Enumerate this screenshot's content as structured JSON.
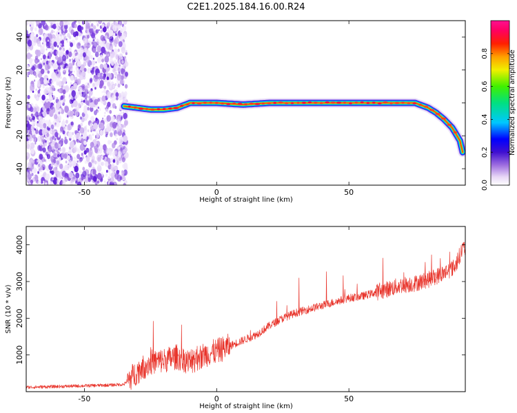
{
  "title": "C2E1.2025.184.16.00.R24",
  "chart_data": [
    {
      "type": "heatmap",
      "xlabel": "Height of straight line (km)",
      "ylabel": "Frequency (Hz)",
      "xlim": [
        -72,
        94
      ],
      "ylim": [
        -50,
        50
      ],
      "xticks": [
        -50,
        0,
        50
      ],
      "yticks": [
        -40,
        -20,
        0,
        20,
        40
      ],
      "colorbar": {
        "label": "Normalized spectral amplitude",
        "range": [
          0,
          1
        ],
        "ticks": [
          0.0,
          0.2,
          0.4,
          0.6,
          0.8
        ],
        "tick_labels": [
          "0.0",
          "0.2",
          "0.4",
          "0.6",
          "0.8"
        ],
        "colormap": "rainbow (white-purple-blue-cyan-green-yellow-red-magenta)"
      },
      "noise_region": {
        "x": [
          -72,
          -34
        ],
        "amplitude": "0.0-0.2 scattered"
      },
      "ridge": {
        "x": [
          -35,
          -30,
          -25,
          -20,
          -15,
          -10,
          -5,
          0,
          10,
          20,
          30,
          40,
          50,
          60,
          70,
          75,
          80,
          83,
          86,
          89,
          92,
          93
        ],
        "freq": [
          -2,
          -3,
          -4,
          -4,
          -3,
          0,
          0,
          0,
          -1,
          0,
          0,
          0,
          0,
          0,
          0,
          0,
          -3,
          -6,
          -10,
          -15,
          -23,
          -30
        ]
      },
      "grid": false,
      "legend": "none"
    },
    {
      "type": "line",
      "xlabel": "Height of straight line (km)",
      "ylabel": "SNR (10 * v/v)",
      "xlim": [
        -72,
        94
      ],
      "ylim": [
        0,
        4500
      ],
      "xticks": [
        -50,
        0,
        50
      ],
      "yticks": [
        1000,
        2000,
        3000,
        4000
      ],
      "color": "#e8332a",
      "grid": false,
      "legend": "none",
      "series": [
        {
          "x": [
            -72,
            -60,
            -50,
            -40,
            -35,
            -30,
            -25,
            -20,
            -15,
            -10,
            -5,
            0,
            5,
            10,
            15,
            20,
            25,
            30,
            35,
            40,
            45,
            50,
            55,
            60,
            65,
            70,
            75,
            80,
            85,
            90,
            93
          ],
          "values": [
            120,
            140,
            160,
            180,
            200,
            550,
            800,
            850,
            950,
            800,
            1000,
            1100,
            1250,
            1400,
            1550,
            1800,
            2000,
            2150,
            2250,
            2350,
            2450,
            2550,
            2600,
            2700,
            2800,
            2900,
            2950,
            3050,
            3200,
            3400,
            3900
          ]
        }
      ]
    }
  ]
}
